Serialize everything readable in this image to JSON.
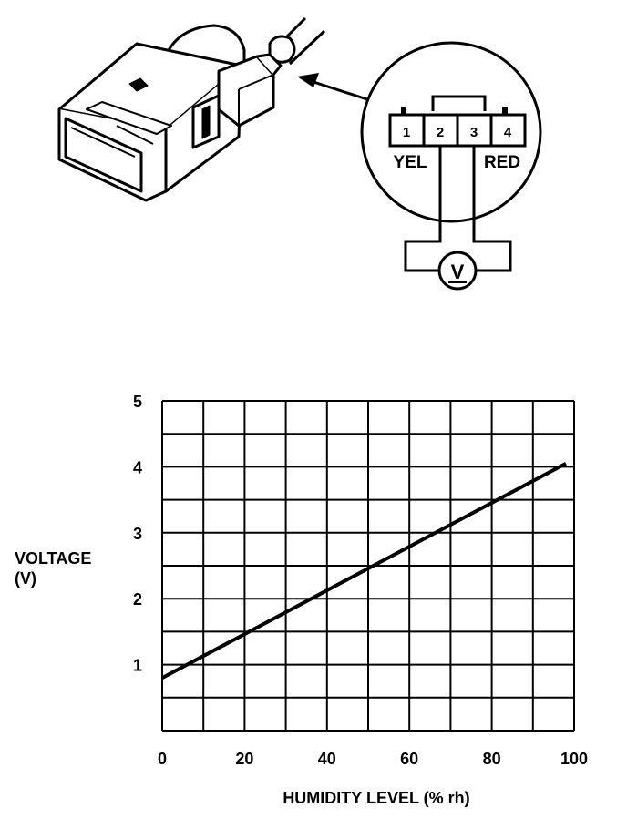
{
  "diagram": {
    "pins": [
      "1",
      "2",
      "3",
      "4"
    ],
    "wire_left": "YEL",
    "wire_right": "RED",
    "meter_symbol": "V"
  },
  "chart_data": {
    "type": "line",
    "xlabel": "HUMIDITY LEVEL (% rh)",
    "ylabel": "VOLTAGE\n(V)",
    "ylabel_lines": [
      "VOLTAGE",
      "(V)"
    ],
    "xlim": [
      0,
      100
    ],
    "ylim": [
      0,
      5
    ],
    "x_ticks": [
      0,
      20,
      40,
      60,
      80,
      100
    ],
    "y_ticks": [
      1,
      2,
      3,
      4,
      5
    ],
    "x_grid_step": 10,
    "y_grid_step": 0.5,
    "grid": true,
    "series": [
      {
        "x": [
          0,
          98
        ],
        "values": [
          0.8,
          4.05
        ]
      }
    ]
  }
}
